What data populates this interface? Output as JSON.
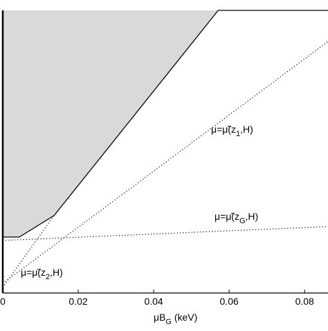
{
  "chart_data": {
    "type": "line",
    "xlabel": {
      "text": "μB",
      "sub": "G",
      "end": " (keV)"
    },
    "xlim": [
      0,
      0.0862
    ],
    "ylim": [
      0,
      1
    ],
    "xticks": [
      0,
      0.02,
      0.04,
      0.06,
      0.08
    ],
    "series": [
      {
        "color": "#000000",
        "style": "solid",
        "fill": "#d9d9d9",
        "x": [
          0,
          0.0044,
          0.0136,
          0.0571,
          0.0862
        ],
        "values": [
          0.198,
          0.198,
          0.274,
          1.0,
          1.0
        ]
      },
      {
        "color": "#000000",
        "style": "dotted",
        "x": [
          0,
          0.0862
        ],
        "values": [
          0.034,
          0.89
        ]
      },
      {
        "color": "#000000",
        "style": "dotted",
        "x": [
          0,
          0.0862
        ],
        "values": [
          0.186,
          0.235
        ]
      },
      {
        "color": "#000000",
        "style": "dotted",
        "x": [
          0,
          0.0136
        ],
        "values": [
          0.02,
          0.274
        ]
      }
    ],
    "annotations": [
      {
        "text": "μ=μ̃(z",
        "sub": "1",
        "end": ",H)"
      },
      {
        "text": "μ=μ̃(z",
        "sub": "G",
        "end": ",H)"
      },
      {
        "text": "μ=μ̃(z",
        "sub": "2",
        "end": ",H)"
      }
    ]
  }
}
